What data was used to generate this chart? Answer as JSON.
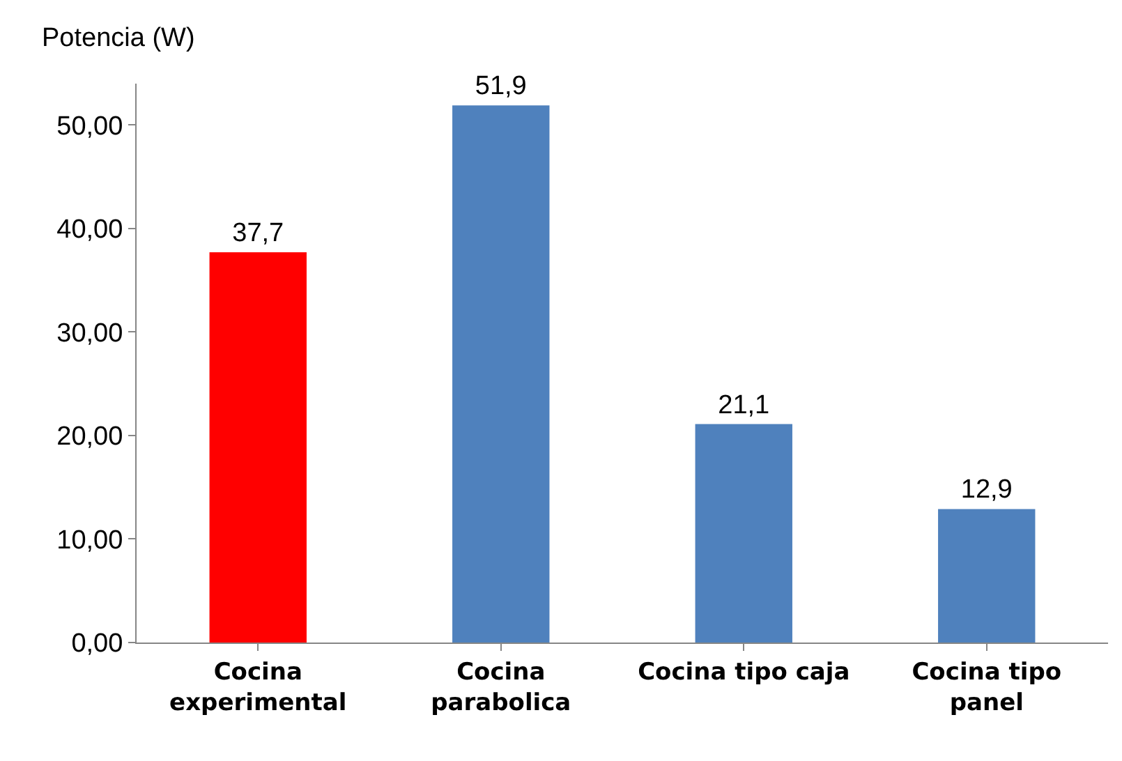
{
  "chart_data": {
    "type": "bar",
    "ylabel": "Potencia (W)",
    "categories": [
      "Cocina\nexperimental",
      "Cocina\nparabolica",
      "Cocina tipo caja",
      "Cocina tipo\npanel"
    ],
    "values": [
      37.7,
      51.9,
      21.1,
      12.9
    ],
    "colors": [
      "#ff0000",
      "#4f81bd",
      "#4f81bd",
      "#4f81bd"
    ],
    "value_labels": [
      "37,7",
      "51,9",
      "21,1",
      "12,9"
    ],
    "ylim": [
      0,
      54
    ],
    "yticks": [
      {
        "value": 0,
        "label": "0,00"
      },
      {
        "value": 10,
        "label": "10,00"
      },
      {
        "value": 20,
        "label": "20,00"
      },
      {
        "value": 30,
        "label": "30,00"
      },
      {
        "value": 40,
        "label": "40,00"
      },
      {
        "value": 50,
        "label": "50,00"
      }
    ]
  }
}
